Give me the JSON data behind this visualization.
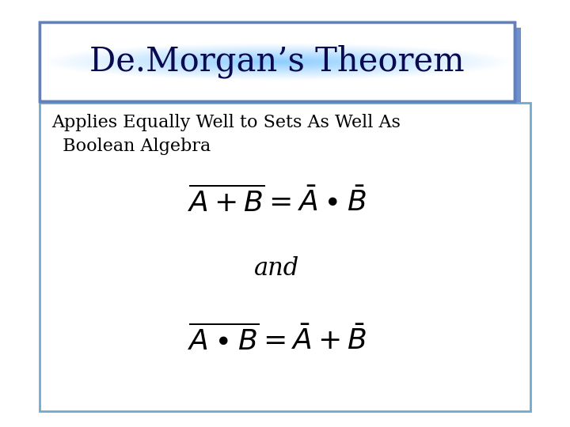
{
  "title": "De.Morgan’s Theorem",
  "subtitle_line1": "Applies Equally Well to Sets As Well As",
  "subtitle_line2": "  Boolean Algebra",
  "formula_and": "and",
  "bg_color": "#ffffff",
  "title_bg_white": "#ffffff",
  "title_glow_color": "#a8d4f0",
  "title_border_color": "#6080c0",
  "title_shadow_color": "#7090cc",
  "content_border_color": "#70aacc",
  "title_font_size": 30,
  "subtitle_font_size": 16,
  "formula_font_size": 26,
  "and_font_size": 22,
  "title_color": "#0a0a50",
  "text_color": "#000000"
}
